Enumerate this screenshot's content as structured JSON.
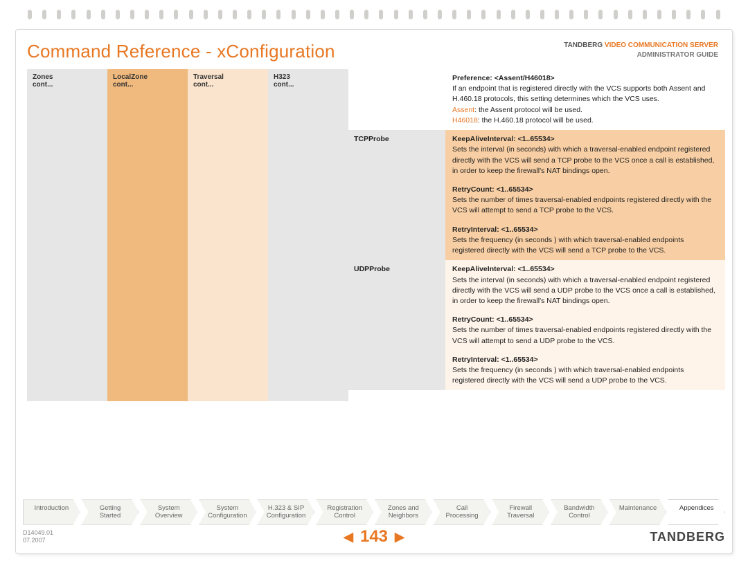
{
  "header": {
    "title": "Command Reference - xConfiguration",
    "brand_line1_prefix": "TANDBERG ",
    "brand_line1_accent": "VIDEO COMMUNICATION SERVER",
    "brand_line2": "ADMINISTRATOR GUIDE"
  },
  "nav": {
    "c0_l1": "Zones",
    "c0_l2": "cont...",
    "c1_l1": "LocalZone",
    "c1_l2": "cont...",
    "c2_l1": "Traversal",
    "c2_l2": "cont...",
    "c3_l1": "H323",
    "c3_l2": "cont..."
  },
  "pref": {
    "title": "Preference: <Assent/H46018>",
    "desc": "If an endpoint that is registered directly with the VCS supports both Assent and H.460.18 protocols, this setting determines which the VCS uses.",
    "assent_key": "Assent",
    "assent_txt": ": the Assent protocol will be used.",
    "h46_key": "H46018",
    "h46_txt": ": the H.460.18 protocol will be used."
  },
  "tcp": {
    "label": "TCPProbe",
    "p1_title": "KeepAliveInterval: <1..65534>",
    "p1_desc": "Sets the interval (in seconds) with which a traversal-enabled endpoint registered directly with the VCS will send a TCP probe to the VCS once a call is established, in order to keep the firewall's NAT bindings open.",
    "p2_title": "RetryCount: <1..65534>",
    "p2_desc": "Sets the number of times traversal-enabled endpoints registered directly with the VCS will attempt to send a TCP probe to the VCS.",
    "p3_title": "RetryInterval: <1..65534>",
    "p3_desc": "Sets the frequency (in seconds ) with which traversal-enabled endpoints registered directly with the VCS will send a TCP probe to the VCS."
  },
  "udp": {
    "label": "UDPProbe",
    "p1_title": "KeepAliveInterval: <1..65534>",
    "p1_desc": "Sets the interval (in seconds) with which a traversal-enabled endpoint registered directly with the VCS will send a UDP probe to the VCS once a call is established, in order to keep the firewall's NAT bindings open.",
    "p2_title": "RetryCount: <1..65534>",
    "p2_desc": "Sets the number of times traversal-enabled endpoints registered directly with the VCS will attempt to send a UDP probe to the VCS.",
    "p3_title": "RetryInterval: <1..65534>",
    "p3_desc": "Sets the frequency (in seconds ) with which traversal-enabled endpoints registered directly with the VCS will send a UDP probe to the VCS."
  },
  "tabs": {
    "t0": "Introduction",
    "t1": "Getting\nStarted",
    "t2": "System\nOverview",
    "t3": "System\nConfiguration",
    "t4": "H.323 & SIP\nConfiguration",
    "t5": "Registration\nControl",
    "t6": "Zones and\nNeighbors",
    "t7": "Call\nProcessing",
    "t8": "Firewall\nTraversal",
    "t9": "Bandwidth\nControl",
    "t10": "Maintenance",
    "t11": "Appendices"
  },
  "footer": {
    "doc": "D14049.01",
    "date": "07.2007",
    "page": "143",
    "brand": "TANDBERG"
  },
  "colors": {
    "accent": "#e87722",
    "nav_grey": "#e6e6e6",
    "nav_orange": "#f0b97d",
    "nav_peach": "#fbe4cd",
    "tcp_bg": "#f8cfa4",
    "udp_bg": "#fef4ea"
  }
}
